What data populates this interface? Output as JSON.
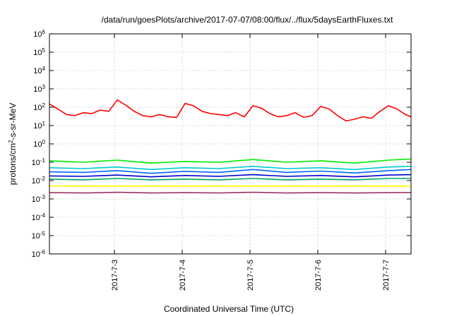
{
  "chart_data": {
    "type": "line",
    "title": "/data/run/goesPlots/archive/2017-07-07/08:00/flux/../flux/5daysEarthFluxes.txt",
    "xlabel": "Coordinated Universal Time (UTC)",
    "ylabel_base": "protons/cm",
    "ylabel_sup": "2",
    "ylabel_rest": "-s-sr-MeV",
    "yscale": "log",
    "ylim": [
      1e-06,
      1000000.0
    ],
    "xlim": [
      "2017-07-02 01:00",
      "2017-07-07 09:00"
    ],
    "grid": true,
    "y_ticks": [
      {
        "base": "10",
        "exp": "6",
        "value": 1000000.0
      },
      {
        "base": "10",
        "exp": "5",
        "value": 100000.0
      },
      {
        "base": "10",
        "exp": "4",
        "value": 10000.0
      },
      {
        "base": "10",
        "exp": "3",
        "value": 1000.0
      },
      {
        "base": "10",
        "exp": "2",
        "value": 100.0
      },
      {
        "base": "10",
        "exp": "1",
        "value": 10.0
      },
      {
        "base": "10",
        "exp": "0",
        "value": 1
      },
      {
        "base": "10",
        "exp": "-1",
        "value": 0.1
      },
      {
        "base": "10",
        "exp": "-2",
        "value": 0.01
      },
      {
        "base": "10",
        "exp": "-3",
        "value": 0.001
      },
      {
        "base": "10",
        "exp": "-4",
        "value": 0.0001
      },
      {
        "base": "10",
        "exp": "-5",
        "value": 1e-05
      },
      {
        "base": "10",
        "exp": "-6",
        "value": 1e-06
      }
    ],
    "x_ticks": [
      {
        "label": "2017-7-3",
        "value": "2017-07-03 00:00"
      },
      {
        "label": "2017-7-4",
        "value": "2017-07-04 00:00"
      },
      {
        "label": "2017-7-5",
        "value": "2017-07-05 00:00"
      },
      {
        "label": "2017-7-6",
        "value": "2017-07-06 00:00"
      },
      {
        "label": "2017-7-7",
        "value": "2017-07-07 00:00"
      }
    ],
    "series": [
      {
        "color": "#ff0000",
        "x": [
          "2017-07-02 01:00",
          "2017-07-02 04:00",
          "2017-07-02 07:00",
          "2017-07-02 10:00",
          "2017-07-02 13:00",
          "2017-07-02 16:00",
          "2017-07-02 19:00",
          "2017-07-02 22:00",
          "2017-07-03 01:00",
          "2017-07-03 04:00",
          "2017-07-03 07:00",
          "2017-07-03 10:00",
          "2017-07-03 13:00",
          "2017-07-03 16:00",
          "2017-07-03 19:00",
          "2017-07-03 22:00",
          "2017-07-04 01:00",
          "2017-07-04 04:00",
          "2017-07-04 07:00",
          "2017-07-04 10:00",
          "2017-07-04 13:00",
          "2017-07-04 16:00",
          "2017-07-04 19:00",
          "2017-07-04 22:00",
          "2017-07-05 01:00",
          "2017-07-05 04:00",
          "2017-07-05 07:00",
          "2017-07-05 10:00",
          "2017-07-05 13:00",
          "2017-07-05 16:00",
          "2017-07-05 19:00",
          "2017-07-05 22:00",
          "2017-07-06 01:00",
          "2017-07-06 04:00",
          "2017-07-06 07:00",
          "2017-07-06 10:00",
          "2017-07-06 13:00",
          "2017-07-06 16:00",
          "2017-07-06 19:00",
          "2017-07-06 22:00",
          "2017-07-07 01:00",
          "2017-07-07 04:00",
          "2017-07-07 07:00",
          "2017-07-07 09:00"
        ],
        "values": [
          150,
          80,
          40,
          35,
          50,
          45,
          70,
          60,
          250,
          130,
          60,
          35,
          30,
          40,
          30,
          28,
          160,
          120,
          60,
          45,
          40,
          35,
          50,
          30,
          120,
          90,
          45,
          30,
          35,
          50,
          28,
          35,
          110,
          80,
          35,
          18,
          22,
          30,
          25,
          60,
          120,
          80,
          40,
          30
        ]
      },
      {
        "color": "#00ee00",
        "x": [
          "2017-07-02 01:00",
          "2017-07-02 13:00",
          "2017-07-03 01:00",
          "2017-07-03 13:00",
          "2017-07-04 01:00",
          "2017-07-04 13:00",
          "2017-07-05 01:00",
          "2017-07-05 13:00",
          "2017-07-06 01:00",
          "2017-07-06 13:00",
          "2017-07-07 01:00",
          "2017-07-07 09:00"
        ],
        "values": [
          0.12,
          0.1,
          0.13,
          0.09,
          0.11,
          0.1,
          0.14,
          0.1,
          0.12,
          0.09,
          0.13,
          0.15
        ]
      },
      {
        "color": "#00cccc",
        "x": [
          "2017-07-02 01:00",
          "2017-07-02 13:00",
          "2017-07-03 01:00",
          "2017-07-03 13:00",
          "2017-07-04 01:00",
          "2017-07-04 13:00",
          "2017-07-05 01:00",
          "2017-07-05 13:00",
          "2017-07-06 01:00",
          "2017-07-06 13:00",
          "2017-07-07 01:00",
          "2017-07-07 09:00"
        ],
        "values": [
          0.05,
          0.045,
          0.055,
          0.04,
          0.05,
          0.045,
          0.06,
          0.045,
          0.05,
          0.04,
          0.055,
          0.06
        ]
      },
      {
        "color": "#0066ff",
        "x": [
          "2017-07-02 01:00",
          "2017-07-02 13:00",
          "2017-07-03 01:00",
          "2017-07-03 13:00",
          "2017-07-04 01:00",
          "2017-07-04 13:00",
          "2017-07-05 01:00",
          "2017-07-05 13:00",
          "2017-07-06 01:00",
          "2017-07-06 13:00",
          "2017-07-07 01:00",
          "2017-07-07 09:00"
        ],
        "values": [
          0.03,
          0.028,
          0.035,
          0.025,
          0.032,
          0.028,
          0.04,
          0.028,
          0.033,
          0.026,
          0.035,
          0.04
        ]
      },
      {
        "color": "#0000cc",
        "x": [
          "2017-07-02 01:00",
          "2017-07-02 13:00",
          "2017-07-03 01:00",
          "2017-07-03 13:00",
          "2017-07-04 01:00",
          "2017-07-04 13:00",
          "2017-07-05 01:00",
          "2017-07-05 13:00",
          "2017-07-06 01:00",
          "2017-07-06 13:00",
          "2017-07-07 01:00",
          "2017-07-07 09:00"
        ],
        "values": [
          0.018,
          0.017,
          0.02,
          0.016,
          0.019,
          0.017,
          0.021,
          0.017,
          0.019,
          0.016,
          0.02,
          0.021
        ]
      },
      {
        "color": "#00aa66",
        "x": [
          "2017-07-02 01:00",
          "2017-07-02 13:00",
          "2017-07-03 01:00",
          "2017-07-03 13:00",
          "2017-07-04 01:00",
          "2017-07-04 13:00",
          "2017-07-05 01:00",
          "2017-07-05 13:00",
          "2017-07-06 01:00",
          "2017-07-06 13:00",
          "2017-07-07 01:00",
          "2017-07-07 09:00"
        ],
        "values": [
          0.012,
          0.011,
          0.013,
          0.011,
          0.012,
          0.011,
          0.013,
          0.011,
          0.012,
          0.011,
          0.013,
          0.013
        ]
      },
      {
        "color": "#ffff00",
        "x": [
          "2017-07-02 01:00",
          "2017-07-02 13:00",
          "2017-07-03 01:00",
          "2017-07-03 13:00",
          "2017-07-04 01:00",
          "2017-07-04 13:00",
          "2017-07-05 01:00",
          "2017-07-05 13:00",
          "2017-07-06 01:00",
          "2017-07-06 13:00",
          "2017-07-07 01:00",
          "2017-07-07 09:00"
        ],
        "values": [
          0.005,
          0.005,
          0.005,
          0.005,
          0.005,
          0.005,
          0.005,
          0.005,
          0.005,
          0.005,
          0.005,
          0.005
        ]
      },
      {
        "color": "#993366",
        "x": [
          "2017-07-02 01:00",
          "2017-07-02 13:00",
          "2017-07-03 01:00",
          "2017-07-03 13:00",
          "2017-07-04 01:00",
          "2017-07-04 13:00",
          "2017-07-05 01:00",
          "2017-07-05 13:00",
          "2017-07-06 01:00",
          "2017-07-06 13:00",
          "2017-07-07 01:00",
          "2017-07-07 09:00"
        ],
        "values": [
          0.0022,
          0.0021,
          0.0023,
          0.0021,
          0.0022,
          0.0021,
          0.0023,
          0.0021,
          0.0022,
          0.0021,
          0.0022,
          0.0022
        ]
      }
    ]
  }
}
